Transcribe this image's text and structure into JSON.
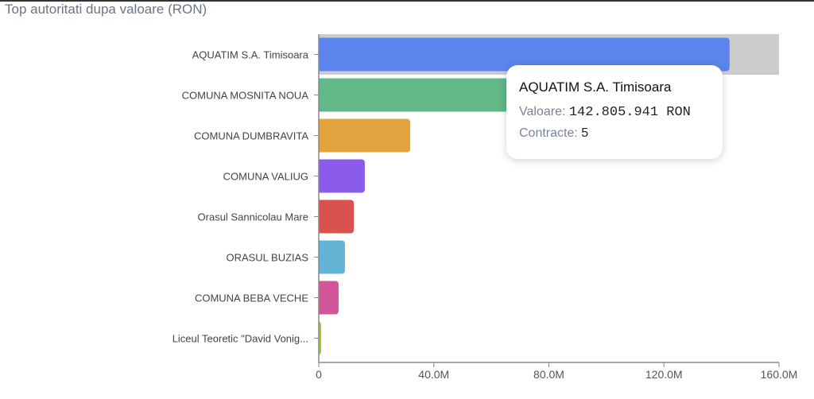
{
  "chart_data": {
    "type": "bar",
    "orientation": "horizontal",
    "title": "Top autoritati dupa valoare (RON)",
    "categories": [
      "AQUATIM S.A. Timisoara",
      "COMUNA MOSNITA NOUA",
      "COMUNA DUMBRAVITA",
      "COMUNA VALIUG",
      "Orasul Sannicolau Mare",
      "ORASUL BUZIAS",
      "COMUNA BEBA VECHE",
      "Liceul Teoretic \"David Vonig..."
    ],
    "values": [
      142.805941,
      68,
      31.8,
      16.0,
      12.2,
      9.1,
      6.9,
      0.8
    ],
    "unit": "M RON",
    "colors": [
      "#5b84ec",
      "#62b886",
      "#e2a23d",
      "#8b5ceb",
      "#d9524e",
      "#62b3d4",
      "#d4569a",
      "#9acd32"
    ],
    "xlim": [
      0,
      160
    ],
    "xticks": [
      0,
      40,
      80,
      120,
      160
    ],
    "xtick_labels": [
      "0",
      "40.0M",
      "80.0M",
      "120.0M",
      "160.0M"
    ],
    "highlighted_index": 0
  },
  "tooltip": {
    "title": "AQUATIM S.A. Timisoara",
    "value_label": "Valoare:",
    "value": "142.805.941 RON",
    "contracts_label": "Contracte:",
    "contracts": "5"
  }
}
